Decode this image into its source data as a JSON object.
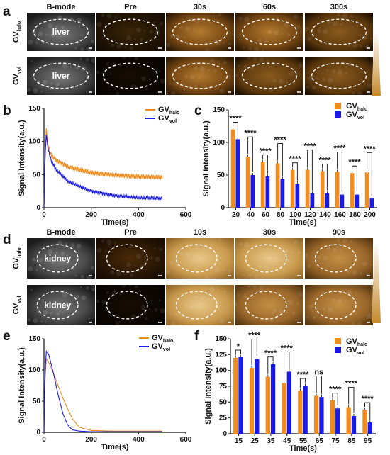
{
  "panel_letters": [
    "a",
    "b",
    "c",
    "d",
    "e",
    "f"
  ],
  "panel_a": {
    "columns": [
      "B-mode",
      "Pre",
      "30s",
      "60s",
      "300s"
    ],
    "rows": [
      {
        "label": "GV",
        "sub": "halo"
      },
      {
        "label": "GV",
        "sub": "vol"
      }
    ],
    "organ": "liver"
  },
  "panel_d": {
    "columns": [
      "B-mode",
      "Pre",
      "10s",
      "30s",
      "90s"
    ],
    "rows": [
      {
        "label": "GV",
        "sub": "halo"
      },
      {
        "label": "GV",
        "sub": "vol"
      }
    ],
    "organ": "kidney"
  },
  "colors": {
    "halo": "#f28c1e",
    "vol": "#1a1ae6"
  },
  "chart_data": [
    {
      "panel": "b",
      "type": "line",
      "xlabel": "Time(s)",
      "ylabel": "Signal Intensity(a.u.)",
      "xlim": [
        0,
        600
      ],
      "ylim": [
        0,
        150
      ],
      "xticks": [
        "0",
        "200",
        "400",
        "600"
      ],
      "yticks": [
        "0",
        "50",
        "100",
        "150"
      ],
      "legend": [
        {
          "label": "GV",
          "sub": "halo"
        },
        {
          "label": "GV",
          "sub": "vol"
        }
      ],
      "series": [
        {
          "name": "GVhalo",
          "x": [
            0,
            5,
            10,
            15,
            20,
            30,
            50,
            100,
            200,
            300,
            400,
            500
          ],
          "y": [
            0,
            80,
            120,
            100,
            90,
            80,
            72,
            62,
            53,
            49,
            47,
            46
          ]
        },
        {
          "name": "GVvol",
          "x": [
            0,
            5,
            10,
            15,
            20,
            30,
            50,
            100,
            200,
            300,
            400,
            500
          ],
          "y": [
            0,
            80,
            110,
            95,
            85,
            72,
            58,
            40,
            25,
            18,
            15,
            14
          ]
        }
      ]
    },
    {
      "panel": "c",
      "type": "bar",
      "xlabel": "Time(s)",
      "ylabel": "Signal Intensity(a.u.)",
      "ylim": [
        0,
        150
      ],
      "yticks": [
        "0",
        "50",
        "100",
        "150"
      ],
      "categories": [
        "20",
        "40",
        "60",
        "80",
        "100",
        "120",
        "140",
        "160",
        "180",
        "200"
      ],
      "legend": [
        {
          "label": "GV",
          "sub": "halo"
        },
        {
          "label": "GV",
          "sub": "vol"
        }
      ],
      "series": [
        {
          "name": "GVhalo",
          "values": [
            120,
            78,
            70,
            68,
            58,
            58,
            56,
            55,
            53,
            54
          ]
        },
        {
          "name": "GVvol",
          "values": [
            105,
            50,
            48,
            44,
            37,
            22,
            22,
            20,
            20,
            14
          ]
        }
      ],
      "significance": [
        "****",
        "****",
        "****",
        "****",
        "****",
        "****",
        "****",
        "****",
        "****",
        "****"
      ]
    },
    {
      "panel": "e",
      "type": "line",
      "xlabel": "Time(s)",
      "ylabel": "Signal Intensity(a.u.)",
      "xlim": [
        0,
        600
      ],
      "ylim": [
        0,
        150
      ],
      "xticks": [
        "0",
        "200",
        "400",
        "600"
      ],
      "yticks": [
        "0",
        "50",
        "100",
        "150"
      ],
      "legend": [
        {
          "label": "GV",
          "sub": "halo"
        },
        {
          "label": "GV",
          "sub": "vol"
        }
      ],
      "series": [
        {
          "name": "GVhalo",
          "x": [
            0,
            5,
            10,
            20,
            40,
            60,
            80,
            100,
            120,
            150,
            200,
            300,
            500
          ],
          "y": [
            0,
            90,
            118,
            112,
            95,
            75,
            55,
            38,
            22,
            8,
            3,
            2,
            2
          ]
        },
        {
          "name": "GVvol",
          "x": [
            0,
            5,
            10,
            20,
            40,
            60,
            80,
            100,
            120,
            150,
            200,
            300,
            500
          ],
          "y": [
            0,
            100,
            130,
            125,
            95,
            60,
            30,
            12,
            4,
            2,
            1,
            1,
            1
          ]
        }
      ]
    },
    {
      "panel": "f",
      "type": "bar",
      "xlabel": "Time(s)",
      "ylabel": "Signal Intensity(a.u.)",
      "ylim": [
        0,
        150
      ],
      "yticks": [
        "0",
        "25",
        "50",
        "75",
        "100",
        "125",
        "150"
      ],
      "categories": [
        "15",
        "25",
        "35",
        "45",
        "55",
        "65",
        "75",
        "85",
        "95"
      ],
      "legend": [
        {
          "label": "GV",
          "sub": "halo"
        },
        {
          "label": "GV",
          "sub": "vol"
        }
      ],
      "series": [
        {
          "name": "GVhalo",
          "values": [
            120,
            104,
            90,
            80,
            68,
            60,
            53,
            42,
            38
          ]
        },
        {
          "name": "GVvol",
          "values": [
            121,
            118,
            110,
            98,
            76,
            58,
            40,
            28,
            18
          ]
        }
      ],
      "significance": [
        "*",
        "****",
        "****",
        "****",
        "****",
        "ns",
        "****",
        "****",
        "****"
      ]
    }
  ]
}
